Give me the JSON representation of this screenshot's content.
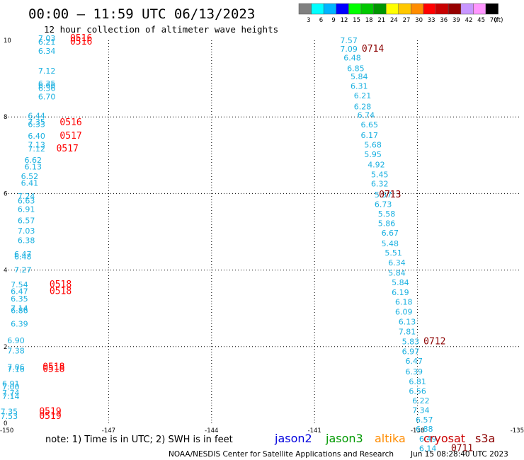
{
  "chart_data": {
    "type": "scatter",
    "title": "00:00 – 11:59 UTC 06/13/2023",
    "subtitle": "12 hour collection of altimeter wave heights",
    "xlim": [
      -150,
      -135
    ],
    "ylim": [
      0,
      10
    ],
    "x_ticks": [
      "-150",
      "-147",
      "-144",
      "-141",
      "-138",
      "-135"
    ],
    "x_tick_values": [
      -150,
      -147,
      -144,
      -141,
      -138,
      -135
    ],
    "y_ticks": [
      "0",
      "2",
      "4",
      "6",
      "8",
      "10"
    ],
    "y_tick_values": [
      0,
      2,
      4,
      6,
      8,
      10
    ],
    "grid": "dotted at major ticks",
    "color_scale": {
      "labels": [
        "3",
        "6",
        "9",
        "12",
        "15",
        "18",
        "21",
        "24",
        "27",
        "30",
        "33",
        "36",
        "39",
        "42",
        "45",
        "70"
      ],
      "unit": "(ft)",
      "colors": [
        "#808080",
        "#00ffff",
        "#00b4ff",
        "#0000ff",
        "#00ff00",
        "#00c800",
        "#009600",
        "#ffff00",
        "#ffc800",
        "#ff8c00",
        "#ff0000",
        "#c80000",
        "#960000",
        "#c896ff",
        "#ff96ff",
        "#000000"
      ]
    },
    "series": [
      {
        "name": "cryosat",
        "color": "#1ab0e0",
        "points": [
          {
            "lon": -148.8,
            "lat": 9.98,
            "swh": "7.03"
          },
          {
            "lon": -148.8,
            "lat": 9.89,
            "swh": "6.21"
          },
          {
            "lon": -148.8,
            "lat": 9.65,
            "swh": "6.34"
          },
          {
            "lon": -148.8,
            "lat": 9.13,
            "swh": "7.12"
          },
          {
            "lon": -148.8,
            "lat": 8.8,
            "swh": "6.35"
          },
          {
            "lon": -148.8,
            "lat": 8.75,
            "swh": "6.66"
          },
          {
            "lon": -148.8,
            "lat": 8.68,
            "swh": "6.36"
          },
          {
            "lon": -148.8,
            "lat": 8.46,
            "swh": "6.70"
          },
          {
            "lon": -149.1,
            "lat": 7.96,
            "swh": "6.44"
          },
          {
            "lon": -149.1,
            "lat": 7.8,
            "swh": "7.35"
          },
          {
            "lon": -149.1,
            "lat": 7.74,
            "swh": "6.33"
          },
          {
            "lon": -149.1,
            "lat": 7.43,
            "swh": "6.40"
          },
          {
            "lon": -149.1,
            "lat": 7.2,
            "swh": "7.13"
          },
          {
            "lon": -149.1,
            "lat": 7.1,
            "swh": "7.12"
          },
          {
            "lon": -149.2,
            "lat": 6.8,
            "swh": "6.62"
          },
          {
            "lon": -149.2,
            "lat": 6.63,
            "swh": "6.13"
          },
          {
            "lon": -149.3,
            "lat": 6.38,
            "swh": "6.52"
          },
          {
            "lon": -149.3,
            "lat": 6.2,
            "swh": "6.41"
          },
          {
            "lon": -149.4,
            "lat": 5.86,
            "swh": "7.24"
          },
          {
            "lon": -149.4,
            "lat": 5.74,
            "swh": "6.63"
          },
          {
            "lon": -149.4,
            "lat": 5.52,
            "swh": "6.91"
          },
          {
            "lon": -149.4,
            "lat": 5.22,
            "swh": "6.57"
          },
          {
            "lon": -149.4,
            "lat": 4.95,
            "swh": "7.03"
          },
          {
            "lon": -149.4,
            "lat": 4.7,
            "swh": "6.38"
          },
          {
            "lon": -149.5,
            "lat": 4.34,
            "swh": "6.47"
          },
          {
            "lon": -149.5,
            "lat": 4.28,
            "swh": "6.48"
          },
          {
            "lon": -149.5,
            "lat": 3.94,
            "swh": "7.27"
          },
          {
            "lon": -149.6,
            "lat": 3.55,
            "swh": "7.54"
          },
          {
            "lon": -149.6,
            "lat": 3.37,
            "swh": "6.47"
          },
          {
            "lon": -149.6,
            "lat": 3.18,
            "swh": "6.35"
          },
          {
            "lon": -149.6,
            "lat": 2.93,
            "swh": "7.14"
          },
          {
            "lon": -149.6,
            "lat": 2.87,
            "swh": "6.86"
          },
          {
            "lon": -149.6,
            "lat": 2.52,
            "swh": "6.39"
          },
          {
            "lon": -149.7,
            "lat": 2.09,
            "swh": "6.90"
          },
          {
            "lon": -149.7,
            "lat": 1.82,
            "swh": "7.38"
          },
          {
            "lon": -149.7,
            "lat": 1.4,
            "swh": "7.06"
          },
          {
            "lon": -149.7,
            "lat": 1.34,
            "swh": "7.16"
          },
          {
            "lon": -149.85,
            "lat": 0.96,
            "swh": "6.91"
          },
          {
            "lon": -149.85,
            "lat": 0.88,
            "swh": "7.00"
          },
          {
            "lon": -149.85,
            "lat": 0.72,
            "swh": "7.74"
          },
          {
            "lon": -149.85,
            "lat": 0.63,
            "swh": "7.14"
          },
          {
            "lon": -149.9,
            "lat": 0.23,
            "swh": "7.35"
          },
          {
            "lon": -149.9,
            "lat": 0.11,
            "swh": "7.53"
          }
        ]
      },
      {
        "name": "cryosat",
        "color": "#1ab0e0",
        "points": [
          {
            "lon": -140.0,
            "lat": 9.93,
            "swh": "7.57"
          },
          {
            "lon": -140.0,
            "lat": 9.7,
            "swh": "7.09"
          },
          {
            "lon": -139.9,
            "lat": 9.47,
            "swh": "6.48"
          },
          {
            "lon": -139.8,
            "lat": 9.2,
            "swh": "6.85"
          },
          {
            "lon": -139.7,
            "lat": 8.98,
            "swh": "5.84"
          },
          {
            "lon": -139.7,
            "lat": 8.73,
            "swh": "6.31"
          },
          {
            "lon": -139.6,
            "lat": 8.48,
            "swh": "6.21"
          },
          {
            "lon": -139.6,
            "lat": 8.2,
            "swh": "6.28"
          },
          {
            "lon": -139.5,
            "lat": 7.98,
            "swh": "6.74"
          },
          {
            "lon": -139.4,
            "lat": 7.73,
            "swh": "6.65"
          },
          {
            "lon": -139.4,
            "lat": 7.45,
            "swh": "6.17"
          },
          {
            "lon": -139.3,
            "lat": 7.2,
            "swh": "5.68"
          },
          {
            "lon": -139.3,
            "lat": 6.95,
            "swh": "5.95"
          },
          {
            "lon": -139.2,
            "lat": 6.68,
            "swh": "4.92"
          },
          {
            "lon": -139.1,
            "lat": 6.42,
            "swh": "5.45"
          },
          {
            "lon": -139.1,
            "lat": 6.18,
            "swh": "6.32"
          },
          {
            "lon": -139.0,
            "lat": 5.9,
            "swh": "5.57"
          },
          {
            "lon": -139.0,
            "lat": 5.65,
            "swh": "6.73"
          },
          {
            "lon": -138.9,
            "lat": 5.4,
            "swh": "5.58"
          },
          {
            "lon": -138.9,
            "lat": 5.15,
            "swh": "5.86"
          },
          {
            "lon": -138.8,
            "lat": 4.9,
            "swh": "6.67"
          },
          {
            "lon": -138.8,
            "lat": 4.62,
            "swh": "5.48"
          },
          {
            "lon": -138.7,
            "lat": 4.38,
            "swh": "5.51"
          },
          {
            "lon": -138.6,
            "lat": 4.12,
            "swh": "6.34"
          },
          {
            "lon": -138.6,
            "lat": 3.85,
            "swh": "5.84"
          },
          {
            "lon": -138.5,
            "lat": 3.6,
            "swh": "5.84"
          },
          {
            "lon": -138.5,
            "lat": 3.35,
            "swh": "6.19"
          },
          {
            "lon": -138.4,
            "lat": 3.1,
            "swh": "6.18"
          },
          {
            "lon": -138.4,
            "lat": 2.84,
            "swh": "6.09"
          },
          {
            "lon": -138.3,
            "lat": 2.58,
            "swh": "6.13"
          },
          {
            "lon": -138.3,
            "lat": 2.32,
            "swh": "7.81"
          },
          {
            "lon": -138.2,
            "lat": 2.06,
            "swh": "5.83"
          },
          {
            "lon": -138.2,
            "lat": 1.8,
            "swh": "6.97"
          },
          {
            "lon": -138.1,
            "lat": 1.55,
            "swh": "6.47"
          },
          {
            "lon": -138.1,
            "lat": 1.28,
            "swh": "6.39"
          },
          {
            "lon": -138.0,
            "lat": 1.02,
            "swh": "6.81"
          },
          {
            "lon": -138.0,
            "lat": 0.77,
            "swh": "6.56"
          },
          {
            "lon": -137.9,
            "lat": 0.52,
            "swh": "6.22"
          },
          {
            "lon": -137.9,
            "lat": 0.27,
            "swh": "7.34"
          },
          {
            "lon": -137.8,
            "lat": 0.02,
            "swh": "6.57"
          },
          {
            "lon": -137.8,
            "lat": -0.22,
            "swh": "6.88"
          },
          {
            "lon": -137.7,
            "lat": -0.48,
            "swh": "6.49"
          },
          {
            "lon": -137.7,
            "lat": -0.73,
            "swh": "6.14"
          }
        ]
      }
    ],
    "time_labels": [
      {
        "text": "0516",
        "lon": -147.8,
        "lat": 9.98,
        "color": "#ff0000"
      },
      {
        "text": "0516",
        "lon": -147.8,
        "lat": 9.89,
        "color": "#ff0000"
      },
      {
        "text": "0714",
        "lon": -139.3,
        "lat": 9.7,
        "color": "#8b0000"
      },
      {
        "text": "0516",
        "lon": -148.1,
        "lat": 7.78,
        "color": "#ff0000"
      },
      {
        "text": "0517",
        "lon": -148.1,
        "lat": 7.43,
        "color": "#ff0000"
      },
      {
        "text": "0517",
        "lon": -148.2,
        "lat": 7.1,
        "color": "#ff0000"
      },
      {
        "text": "0713",
        "lon": -138.8,
        "lat": 5.9,
        "color": "#8b0000"
      },
      {
        "text": "0518",
        "lon": -148.4,
        "lat": 3.55,
        "color": "#ff0000"
      },
      {
        "text": "0518",
        "lon": -148.4,
        "lat": 3.37,
        "color": "#ff0000"
      },
      {
        "text": "0712",
        "lon": -137.5,
        "lat": 2.06,
        "color": "#8b0000"
      },
      {
        "text": "0518",
        "lon": -148.6,
        "lat": 1.4,
        "color": "#ff0000"
      },
      {
        "text": "0518",
        "lon": -148.6,
        "lat": 1.34,
        "color": "#ff0000"
      },
      {
        "text": "0519",
        "lon": -148.7,
        "lat": 0.23,
        "color": "#ff0000"
      },
      {
        "text": "0519",
        "lon": -148.7,
        "lat": 0.11,
        "color": "#ff0000"
      },
      {
        "text": "0711",
        "lon": -136.7,
        "lat": -0.73,
        "color": "#8b0000"
      }
    ]
  },
  "footer": {
    "note": "note:  1) Time is in UTC;  2) SWH is in feet",
    "satellites": [
      {
        "name": "jason2",
        "color": "#0000dd"
      },
      {
        "name": "jason3",
        "color": "#009900"
      },
      {
        "name": "altika",
        "color": "#ff8c00"
      },
      {
        "name": "cryosat",
        "color": "#cc0000"
      },
      {
        "name": "s3a",
        "color": "#8b0000"
      }
    ],
    "credit": "NOAA/NESDIS Center for Satellite Applications and Research",
    "timestamp": "Jun 15 08:28:40 UTC 2023"
  }
}
